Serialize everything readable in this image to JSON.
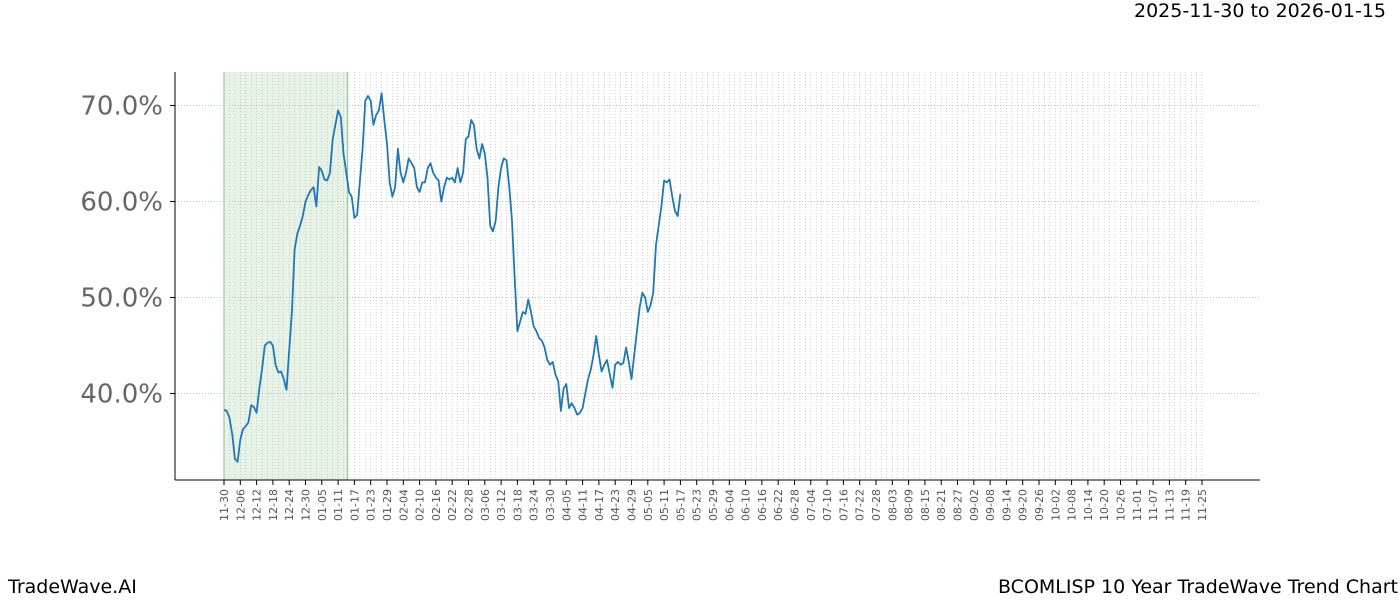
{
  "header": {
    "date_range": "2025-11-30 to 2026-01-15"
  },
  "footer": {
    "brand": "TradeWave.AI",
    "caption": "BCOMLISP 10 Year TradeWave Trend Chart"
  },
  "colors": {
    "line": "#1f77b4",
    "shade": "#e6f2e6",
    "grid": "#b0b0b0"
  },
  "chart_data": {
    "type": "line",
    "title": "",
    "xlabel": "",
    "ylabel": "",
    "ylim": [
      31,
      73.5
    ],
    "yticks": [
      40,
      50,
      60,
      70
    ],
    "ytick_labels": [
      "40.0%",
      "50.0%",
      "60.0%",
      "70.0%"
    ],
    "xtick_labels": [
      "11-30",
      "12-06",
      "12-12",
      "12-18",
      "12-24",
      "12-30",
      "01-05",
      "01-11",
      "01-17",
      "01-23",
      "01-29",
      "02-04",
      "02-10",
      "02-16",
      "02-22",
      "02-28",
      "03-06",
      "03-12",
      "03-18",
      "03-24",
      "03-30",
      "04-05",
      "04-11",
      "04-17",
      "04-23",
      "04-29",
      "05-05",
      "05-11",
      "05-17",
      "05-23",
      "05-29",
      "06-04",
      "06-10",
      "06-16",
      "06-22",
      "06-28",
      "07-04",
      "07-10",
      "07-16",
      "07-22",
      "07-28",
      "08-03",
      "08-09",
      "08-15",
      "08-21",
      "08-27",
      "09-02",
      "09-08",
      "09-14",
      "09-20",
      "09-26",
      "10-02",
      "10-08",
      "10-14",
      "10-20",
      "10-26",
      "11-01",
      "11-07",
      "11-13",
      "11-19",
      "11-25"
    ],
    "highlight_range": [
      "11-30",
      "01-17"
    ],
    "grid": true,
    "series": [
      {
        "values": [
          [
            0,
            38.3
          ],
          [
            1,
            38.2
          ],
          [
            2,
            37.5
          ],
          [
            3,
            35.8
          ],
          [
            4,
            33.2
          ],
          [
            5,
            32.9
          ],
          [
            6,
            35.2
          ],
          [
            7,
            36.3
          ],
          [
            8,
            36.6
          ],
          [
            9,
            37.0
          ],
          [
            10,
            38.8
          ],
          [
            11,
            38.6
          ],
          [
            12,
            38.0
          ],
          [
            13,
            40.5
          ],
          [
            14,
            42.5
          ],
          [
            15,
            45.0
          ],
          [
            16,
            45.3
          ],
          [
            17,
            45.4
          ],
          [
            18,
            45.0
          ],
          [
            19,
            43.0
          ],
          [
            20,
            42.2
          ],
          [
            21,
            42.3
          ],
          [
            22,
            41.5
          ],
          [
            23,
            40.4
          ],
          [
            24,
            44.5
          ],
          [
            25,
            48.5
          ],
          [
            26,
            55.0
          ],
          [
            27,
            56.7
          ],
          [
            28,
            57.5
          ],
          [
            29,
            58.5
          ],
          [
            30,
            60.0
          ],
          [
            31,
            60.7
          ],
          [
            32,
            61.2
          ],
          [
            33,
            61.5
          ],
          [
            34,
            59.5
          ],
          [
            35,
            63.6
          ],
          [
            36,
            63.2
          ],
          [
            37,
            62.3
          ],
          [
            38,
            62.2
          ],
          [
            39,
            63.0
          ],
          [
            40,
            66.5
          ],
          [
            41,
            68.0
          ],
          [
            42,
            69.5
          ],
          [
            43,
            68.8
          ],
          [
            44,
            65.0
          ],
          [
            45,
            63.0
          ],
          [
            46,
            61.0
          ],
          [
            47,
            60.5
          ],
          [
            48,
            58.3
          ],
          [
            49,
            58.6
          ],
          [
            50,
            62.0
          ],
          [
            51,
            65.5
          ],
          [
            52,
            70.5
          ],
          [
            53,
            71.0
          ],
          [
            54,
            70.5
          ],
          [
            55,
            68.0
          ],
          [
            56,
            69.0
          ],
          [
            57,
            69.5
          ],
          [
            58,
            71.3
          ],
          [
            59,
            68.5
          ],
          [
            60,
            66.0
          ],
          [
            61,
            62.0
          ],
          [
            62,
            60.5
          ],
          [
            63,
            61.5
          ],
          [
            64,
            65.5
          ],
          [
            65,
            63.0
          ],
          [
            66,
            62.0
          ],
          [
            67,
            63.0
          ],
          [
            68,
            64.5
          ],
          [
            69,
            64.0
          ],
          [
            70,
            63.5
          ],
          [
            71,
            61.5
          ],
          [
            72,
            61.0
          ],
          [
            73,
            62.0
          ],
          [
            74,
            62.0
          ],
          [
            75,
            63.5
          ],
          [
            76,
            64.0
          ],
          [
            77,
            63.0
          ],
          [
            78,
            62.5
          ],
          [
            79,
            62.2
          ],
          [
            80,
            60.0
          ],
          [
            81,
            61.5
          ],
          [
            82,
            62.5
          ],
          [
            83,
            62.3
          ],
          [
            84,
            62.5
          ],
          [
            85,
            62.0
          ],
          [
            86,
            63.5
          ],
          [
            87,
            62.0
          ],
          [
            88,
            63.0
          ],
          [
            89,
            66.5
          ],
          [
            90,
            66.8
          ],
          [
            91,
            68.5
          ],
          [
            92,
            68.0
          ],
          [
            93,
            65.5
          ],
          [
            94,
            64.5
          ],
          [
            95,
            66.0
          ],
          [
            96,
            65.0
          ],
          [
            97,
            62.5
          ],
          [
            98,
            57.5
          ],
          [
            99,
            56.9
          ],
          [
            100,
            58.0
          ],
          [
            101,
            61.5
          ],
          [
            102,
            63.5
          ],
          [
            103,
            64.5
          ],
          [
            104,
            64.3
          ],
          [
            105,
            61.5
          ],
          [
            106,
            58.0
          ],
          [
            107,
            52.0
          ],
          [
            108,
            46.5
          ],
          [
            109,
            47.5
          ],
          [
            110,
            48.5
          ],
          [
            111,
            48.3
          ],
          [
            112,
            49.8
          ],
          [
            113,
            48.5
          ],
          [
            114,
            47.0
          ],
          [
            115,
            46.5
          ],
          [
            116,
            45.8
          ],
          [
            117,
            45.5
          ],
          [
            118,
            44.8
          ],
          [
            119,
            43.5
          ],
          [
            120,
            43.0
          ],
          [
            121,
            43.3
          ],
          [
            122,
            42.0
          ],
          [
            123,
            41.3
          ],
          [
            124,
            38.2
          ],
          [
            125,
            40.5
          ],
          [
            126,
            41.0
          ],
          [
            127,
            38.5
          ],
          [
            128,
            39.0
          ],
          [
            129,
            38.5
          ],
          [
            130,
            37.8
          ],
          [
            131,
            38.0
          ],
          [
            132,
            38.5
          ],
          [
            133,
            40.0
          ],
          [
            134,
            41.5
          ],
          [
            135,
            42.5
          ],
          [
            136,
            44.0
          ],
          [
            137,
            46.0
          ],
          [
            138,
            44.0
          ],
          [
            139,
            42.3
          ],
          [
            140,
            43.0
          ],
          [
            141,
            43.5
          ],
          [
            142,
            42.0
          ],
          [
            143,
            40.6
          ],
          [
            144,
            43.0
          ],
          [
            145,
            43.3
          ],
          [
            146,
            43.0
          ],
          [
            147,
            43.2
          ],
          [
            148,
            44.8
          ],
          [
            149,
            43.3
          ],
          [
            150,
            41.5
          ],
          [
            151,
            44.0
          ],
          [
            152,
            46.5
          ],
          [
            153,
            49.0
          ],
          [
            154,
            50.5
          ],
          [
            155,
            50.0
          ],
          [
            156,
            48.5
          ],
          [
            157,
            49.2
          ],
          [
            158,
            50.5
          ],
          [
            159,
            55.5
          ],
          [
            160,
            57.5
          ],
          [
            161,
            59.5
          ],
          [
            162,
            62.2
          ],
          [
            163,
            62.0
          ],
          [
            164,
            62.3
          ],
          [
            165,
            60.5
          ],
          [
            166,
            59.0
          ],
          [
            167,
            58.5
          ],
          [
            168,
            60.8
          ]
        ]
      }
    ]
  }
}
